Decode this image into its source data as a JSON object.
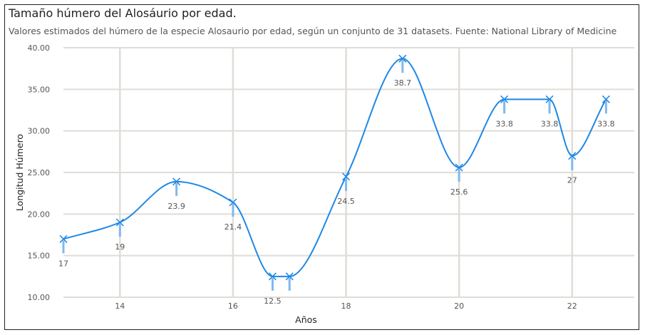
{
  "title": "Tamaño húmero del Alosáurio por edad.",
  "subtitle": "Valores estimados del húmero de la especie Alosaurio por edad, según un conjunto de 31 datasets. Fuente:  National Library of Medicine",
  "colors": {
    "line": "#1e88e5",
    "marker": "#1e88e5",
    "error_bar": "#7fb8ee",
    "grid": "#e0ddd8",
    "border": "#222222"
  },
  "chart_data": {
    "type": "line",
    "title": "Tamaño húmero del Alosáurio por edad.",
    "subtitle": "Valores estimados del húmero de la especie Alosaurio por edad, según un conjunto de 31 datasets. Fuente:  National Library of Medicine",
    "xlabel": "Años",
    "ylabel": "Longitud Húmero",
    "xlim": [
      13,
      23.1
    ],
    "ylim": [
      10,
      40
    ],
    "x_ticks": [
      14,
      16,
      18,
      20,
      22
    ],
    "x_tick_labels": [
      "14",
      "16",
      "18",
      "20",
      "22"
    ],
    "y_ticks": [
      10,
      15,
      20,
      25,
      30,
      35,
      40
    ],
    "y_tick_labels": [
      "10.00",
      "15.00",
      "20.00",
      "25.00",
      "30.00",
      "35.00",
      "40.00"
    ],
    "grid": true,
    "smooth": true,
    "series": [
      {
        "x": [
          13,
          14,
          15,
          16,
          16.7,
          17,
          18,
          19,
          20,
          20.8,
          21.6,
          22,
          22.6
        ],
        "y": [
          17,
          19,
          23.9,
          21.4,
          12.5,
          12.5,
          24.5,
          38.7,
          25.6,
          33.8,
          33.8,
          27,
          33.8
        ],
        "labels": [
          "17",
          "19",
          "23.9",
          "21.4",
          "12.5",
          "",
          "24.5",
          "38.7",
          "25.6",
          "33.8",
          "33.8",
          "27",
          "33.8"
        ]
      }
    ]
  }
}
